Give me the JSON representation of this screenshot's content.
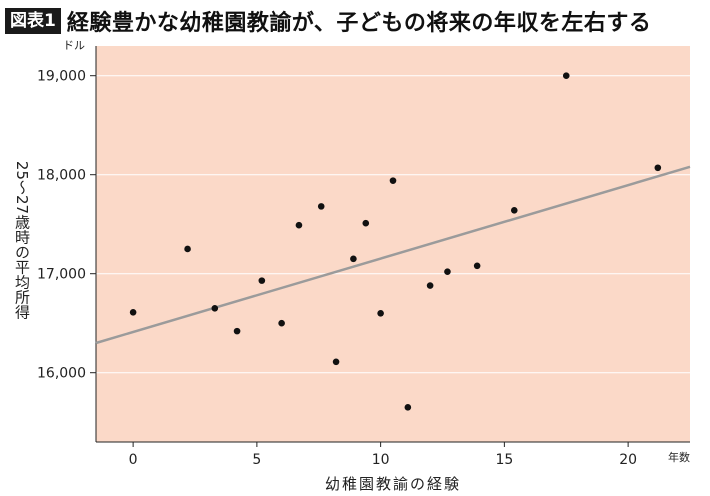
{
  "header": {
    "badge": "図表1",
    "title": "経験豊かな幼稚園教諭が、子どもの将来の年収を左右する"
  },
  "colors": {
    "plot_bg": "#fbd9c8",
    "point": "#111111",
    "trend": "#9b9b9b",
    "grid": "#ffffff"
  },
  "chart_data": {
    "type": "scatter",
    "xlabel": "幼稚園教諭の経験",
    "ylabel": "25〜27歳時の平均所得",
    "x_unit": "年数",
    "y_unit": "ドル",
    "xlim": [
      -1.5,
      22.5
    ],
    "ylim": [
      15300,
      19300
    ],
    "xticks": [
      0,
      5,
      10,
      15,
      20
    ],
    "xtick_labels": [
      "0",
      "5",
      "10",
      "15",
      "20"
    ],
    "yticks": [
      16000,
      17000,
      18000,
      19000
    ],
    "ytick_labels": [
      "16,000",
      "17,000",
      "18,000",
      "19,000"
    ],
    "grid": "horizontal",
    "points": [
      {
        "x": 0.0,
        "y": 16610
      },
      {
        "x": 2.2,
        "y": 17250
      },
      {
        "x": 3.3,
        "y": 16650
      },
      {
        "x": 4.2,
        "y": 16420
      },
      {
        "x": 5.2,
        "y": 16930
      },
      {
        "x": 6.0,
        "y": 16500
      },
      {
        "x": 6.7,
        "y": 17490
      },
      {
        "x": 7.6,
        "y": 17680
      },
      {
        "x": 8.2,
        "y": 16110
      },
      {
        "x": 8.9,
        "y": 17150
      },
      {
        "x": 9.4,
        "y": 17510
      },
      {
        "x": 10.0,
        "y": 16600
      },
      {
        "x": 10.5,
        "y": 17940
      },
      {
        "x": 11.1,
        "y": 15650
      },
      {
        "x": 12.0,
        "y": 16880
      },
      {
        "x": 12.7,
        "y": 17020
      },
      {
        "x": 13.9,
        "y": 17080
      },
      {
        "x": 15.4,
        "y": 17640
      },
      {
        "x": 17.5,
        "y": 19000
      },
      {
        "x": 21.2,
        "y": 18070
      }
    ],
    "trendline": {
      "x": [
        -1.5,
        22.5
      ],
      "y": [
        16300,
        18080
      ]
    }
  }
}
